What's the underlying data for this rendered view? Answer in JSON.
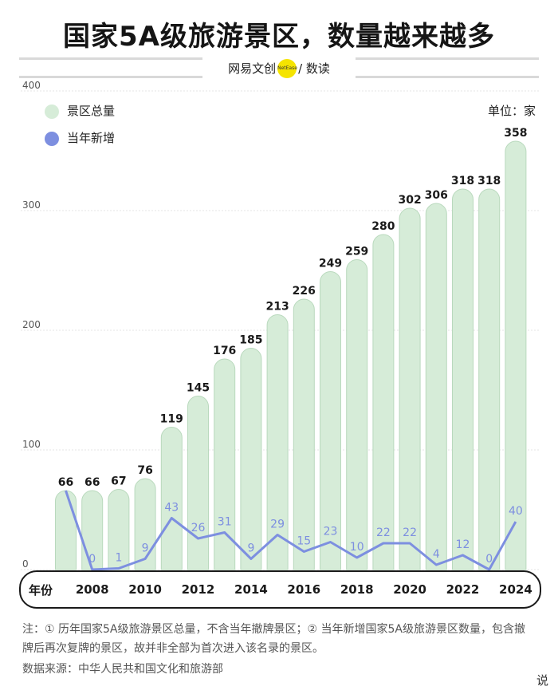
{
  "header": {
    "title": "国家5A级旅游景区，数量越来越多",
    "brand_left": "网易文创",
    "brand_logo": "NetEase",
    "brand_right": "/ 数读"
  },
  "unit_label": "单位：家",
  "axis_name": "年份",
  "chart_data": {
    "type": "bar",
    "x": [
      2007,
      2008,
      2009,
      2010,
      2011,
      2012,
      2013,
      2014,
      2015,
      2016,
      2017,
      2018,
      2019,
      2020,
      2021,
      2022,
      2023,
      2024
    ],
    "x_tick_labels": [
      "2008",
      "2010",
      "2012",
      "2014",
      "2016",
      "2018",
      "2020",
      "2022",
      "2024"
    ],
    "ylim": [
      0,
      400
    ],
    "y_ticks": [
      0,
      100,
      200,
      300,
      400
    ],
    "grid": true,
    "legend_position": "top-left",
    "series": [
      {
        "name": "景区总量",
        "type": "bar",
        "color": "#d6ecd8",
        "values": [
          66,
          66,
          67,
          76,
          119,
          145,
          176,
          185,
          213,
          226,
          249,
          259,
          280,
          302,
          306,
          318,
          318,
          358
        ]
      },
      {
        "name": "当年新增",
        "type": "line",
        "color": "#7d8fe0",
        "values": [
          66,
          0,
          1,
          9,
          43,
          26,
          31,
          9,
          29,
          15,
          23,
          10,
          22,
          22,
          4,
          12,
          0,
          40
        ]
      }
    ]
  },
  "note": "注：① 历年国家5A级旅游景区总量，不含当年撤牌景区；② 当年新增国家5A级旅游景区数量，包含撤牌后再次复牌的景区，故并非全部为首次进入该名录的景区。",
  "source": "数据来源：中华人民共和国文化和旅游部",
  "watermark": "说"
}
